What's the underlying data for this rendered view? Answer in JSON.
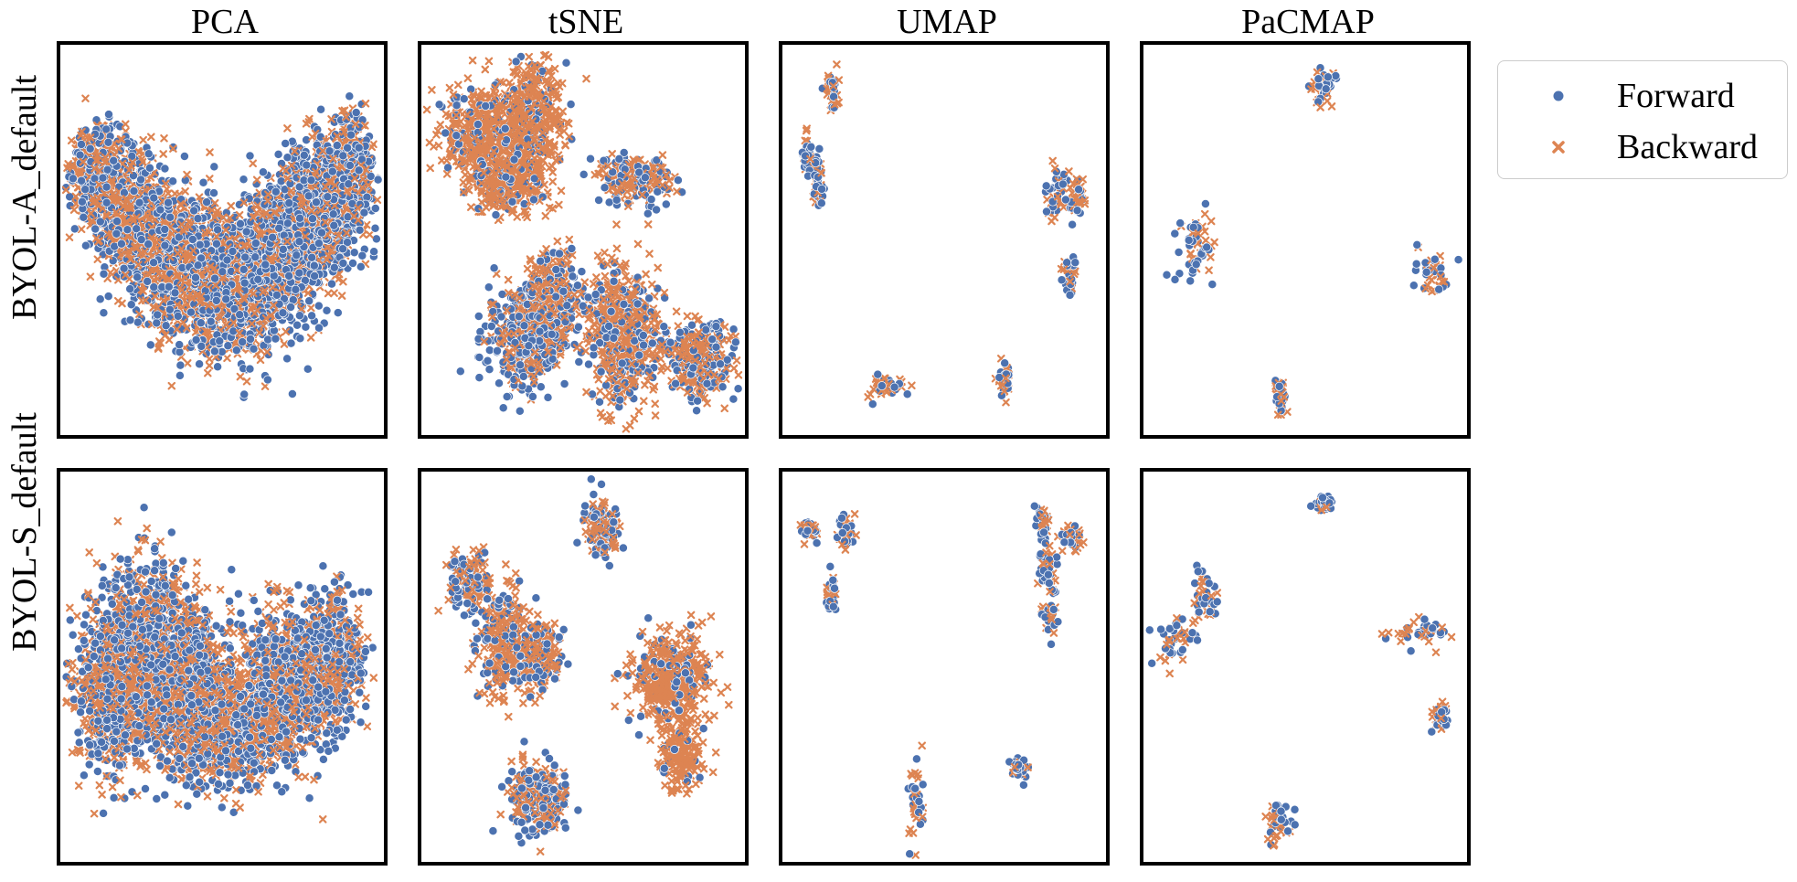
{
  "colors": {
    "forward": "#4c72b0",
    "backward": "#dd8452"
  },
  "columns": [
    "PCA",
    "tSNE",
    "UMAP",
    "PaCMAP"
  ],
  "rows": [
    "BYOL-A_default",
    "BYOL-S_default"
  ],
  "legend": {
    "forward_label": "Forward",
    "backward_label": "Backward",
    "placement": "right, outside top"
  },
  "chart_data": {
    "type": "scatter",
    "layout": "2x4 grid of scatter plots, no axes or ticks",
    "series": [
      {
        "name": "Forward",
        "marker": "circle",
        "color": "#4c72b0"
      },
      {
        "name": "Backward",
        "marker": "x",
        "color": "#dd8452"
      }
    ],
    "grid": false,
    "panels": [
      {
        "row": "BYOL-A_default",
        "column": "PCA",
        "xlim": [
          0,
          100
        ],
        "ylim": [
          0,
          100
        ],
        "shape": "U-shaped band, left arm high at x~5-25, right arm high at x~75-95, trough centered x~55, y~25",
        "clusters": [
          {
            "x": 10,
            "y": 68,
            "sx": 6,
            "sy": 8,
            "fwd": 0.5
          },
          {
            "x": 22,
            "y": 55,
            "sx": 8,
            "sy": 10,
            "fwd": 0.5
          },
          {
            "x": 36,
            "y": 44,
            "sx": 9,
            "sy": 11,
            "fwd": 0.45
          },
          {
            "x": 52,
            "y": 36,
            "sx": 10,
            "sy": 11,
            "fwd": 0.5
          },
          {
            "x": 67,
            "y": 45,
            "sx": 9,
            "sy": 12,
            "fwd": 0.6
          },
          {
            "x": 80,
            "y": 58,
            "sx": 8,
            "sy": 11,
            "fwd": 0.65
          },
          {
            "x": 90,
            "y": 66,
            "sx": 5,
            "sy": 10,
            "fwd": 0.6
          }
        ]
      },
      {
        "row": "BYOL-A_default",
        "column": "tSNE",
        "xlim": [
          0,
          100
        ],
        "ylim": [
          0,
          100
        ],
        "clusters": [
          {
            "x": 17,
            "y": 78,
            "sx": 8,
            "sy": 7,
            "fwd": 0.2
          },
          {
            "x": 33,
            "y": 82,
            "sx": 7,
            "sy": 9,
            "fwd": 0.2
          },
          {
            "x": 25,
            "y": 65,
            "sx": 8,
            "sy": 5,
            "fwd": 0.2
          },
          {
            "x": 67,
            "y": 66,
            "sx": 7,
            "sy": 4,
            "fwd": 0.45
          },
          {
            "x": 32,
            "y": 25,
            "sx": 8,
            "sy": 8,
            "fwd": 0.55
          },
          {
            "x": 40,
            "y": 36,
            "sx": 5,
            "sy": 7,
            "fwd": 0.4
          },
          {
            "x": 63,
            "y": 25,
            "sx": 7,
            "sy": 11,
            "fwd": 0.3
          },
          {
            "x": 87,
            "y": 19,
            "sx": 7,
            "sy": 6,
            "fwd": 0.45
          }
        ]
      },
      {
        "row": "BYOL-A_default",
        "column": "UMAP",
        "xlim": [
          0,
          100
        ],
        "ylim": [
          0,
          100
        ],
        "clusters": [
          {
            "x": 14,
            "y": 89,
            "sx": 1.4,
            "sy": 3,
            "fwd": 0.5
          },
          {
            "x": 7,
            "y": 73,
            "sx": 1.6,
            "sy": 3.5,
            "fwd": 0.5
          },
          {
            "x": 10,
            "y": 64,
            "sx": 1.2,
            "sy": 4,
            "fwd": 0.5
          },
          {
            "x": 86,
            "y": 62,
            "sx": 2.5,
            "sy": 4,
            "fwd": 0.5
          },
          {
            "x": 92,
            "y": 61,
            "sx": 1.8,
            "sy": 3,
            "fwd": 0.5
          },
          {
            "x": 90,
            "y": 40,
            "sx": 1.2,
            "sy": 3,
            "fwd": 0.55
          },
          {
            "x": 31,
            "y": 11,
            "sx": 4,
            "sy": 2.3,
            "fwd": 0.5
          },
          {
            "x": 69,
            "y": 13,
            "sx": 1.2,
            "sy": 2.8,
            "fwd": 0.5
          }
        ]
      },
      {
        "row": "BYOL-A_default",
        "column": "PaCMAP",
        "xlim": [
          0,
          100
        ],
        "ylim": [
          0,
          100
        ],
        "clusters": [
          {
            "x": 56,
            "y": 91,
            "sx": 2.5,
            "sy": 3.5,
            "fwd": 0.6
          },
          {
            "x": 15,
            "y": 48,
            "sx": 3.5,
            "sy": 6,
            "fwd": 0.5
          },
          {
            "x": 91,
            "y": 41,
            "sx": 4,
            "sy": 3.5,
            "fwd": 0.55
          },
          {
            "x": 42,
            "y": 9,
            "sx": 1,
            "sy": 2.5,
            "fwd": 0.5
          }
        ]
      },
      {
        "row": "BYOL-S_default",
        "column": "PCA",
        "xlim": [
          0,
          100
        ],
        "ylim": [
          0,
          100
        ],
        "shape": "V-shaped band with dense core spanning x~10-95, left arm rising to y~80",
        "clusters": [
          {
            "x": 15,
            "y": 45,
            "sx": 7,
            "sy": 14,
            "fwd": 0.5
          },
          {
            "x": 28,
            "y": 55,
            "sx": 9,
            "sy": 14,
            "fwd": 0.55
          },
          {
            "x": 40,
            "y": 42,
            "sx": 8,
            "sy": 13,
            "fwd": 0.5
          },
          {
            "x": 55,
            "y": 33,
            "sx": 8,
            "sy": 9,
            "fwd": 0.45
          },
          {
            "x": 70,
            "y": 45,
            "sx": 9,
            "sy": 12,
            "fwd": 0.55
          },
          {
            "x": 85,
            "y": 52,
            "sx": 6,
            "sy": 11,
            "fwd": 0.55
          }
        ]
      },
      {
        "row": "BYOL-S_default",
        "column": "tSNE",
        "xlim": [
          0,
          100
        ],
        "ylim": [
          0,
          100
        ],
        "clusters": [
          {
            "x": 56,
            "y": 86,
            "sx": 3.5,
            "sy": 5,
            "fwd": 0.55
          },
          {
            "x": 14,
            "y": 72,
            "sx": 4,
            "sy": 5,
            "fwd": 0.45
          },
          {
            "x": 25,
            "y": 56,
            "sx": 5,
            "sy": 8,
            "fwd": 0.35
          },
          {
            "x": 36,
            "y": 52,
            "sx": 4,
            "sy": 6,
            "fwd": 0.3
          },
          {
            "x": 78,
            "y": 47,
            "sx": 8,
            "sy": 7,
            "fwd": 0.15
          },
          {
            "x": 81,
            "y": 27,
            "sx": 4,
            "sy": 6,
            "fwd": 0.1
          },
          {
            "x": 36,
            "y": 15,
            "sx": 6,
            "sy": 6,
            "fwd": 0.45
          }
        ]
      },
      {
        "row": "BYOL-S_default",
        "column": "UMAP",
        "xlim": [
          0,
          100
        ],
        "ylim": [
          0,
          100
        ],
        "clusters": [
          {
            "x": 7,
            "y": 86,
            "sx": 1.5,
            "sy": 2,
            "fwd": 0.55
          },
          {
            "x": 19,
            "y": 86,
            "sx": 1.5,
            "sy": 2.5,
            "fwd": 0.5
          },
          {
            "x": 14,
            "y": 70,
            "sx": 1.2,
            "sy": 3,
            "fwd": 0.55
          },
          {
            "x": 82,
            "y": 88,
            "sx": 1.4,
            "sy": 3.5,
            "fwd": 0.55
          },
          {
            "x": 91,
            "y": 84,
            "sx": 2,
            "sy": 2,
            "fwd": 0.5
          },
          {
            "x": 83,
            "y": 76,
            "sx": 2,
            "sy": 4,
            "fwd": 0.55
          },
          {
            "x": 84,
            "y": 64,
            "sx": 1.2,
            "sy": 4,
            "fwd": 0.55
          },
          {
            "x": 41,
            "y": 15,
            "sx": 1.5,
            "sy": 10,
            "fwd": 0.5
          },
          {
            "x": 74,
            "y": 23,
            "sx": 1.5,
            "sy": 2.5,
            "fwd": 0.6
          }
        ]
      },
      {
        "row": "BYOL-S_default",
        "column": "PaCMAP",
        "xlim": [
          0,
          100
        ],
        "ylim": [
          0,
          100
        ],
        "clusters": [
          {
            "x": 56,
            "y": 93,
            "sx": 1.5,
            "sy": 1.2,
            "fwd": 0.6
          },
          {
            "x": 18,
            "y": 69,
            "sx": 3,
            "sy": 5,
            "fwd": 0.5
          },
          {
            "x": 8,
            "y": 57,
            "sx": 4,
            "sy": 4,
            "fwd": 0.55
          },
          {
            "x": 87,
            "y": 59,
            "sx": 7,
            "sy": 2.2,
            "fwd": 0.55
          },
          {
            "x": 93,
            "y": 37,
            "sx": 1.5,
            "sy": 3,
            "fwd": 0.6
          },
          {
            "x": 42,
            "y": 9,
            "sx": 3,
            "sy": 3,
            "fwd": 0.5
          }
        ]
      }
    ]
  }
}
